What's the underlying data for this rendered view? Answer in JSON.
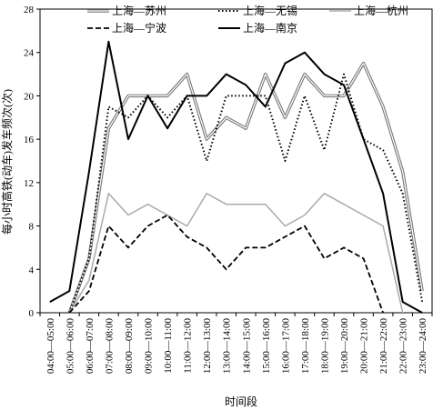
{
  "chart_data": {
    "type": "line",
    "xlabel": "时间段",
    "ylabel": "每小时高铁(动车)发车频次(次)",
    "ylim": [
      0,
      28
    ],
    "yticks": [
      "0",
      "4",
      "8",
      "12",
      "16",
      "20",
      "24",
      "28"
    ],
    "grid": false,
    "legend_position": "top",
    "categories": [
      "04:00—05:00",
      "05:00—06:00",
      "06:00—07:00",
      "07:00—08:00",
      "08:00—09:00",
      "09:00—10:00",
      "10:00—11:00",
      "11:00—12:00",
      "12:00—13:00",
      "13:00—14:00",
      "14:00—15:00",
      "15:00—16:00",
      "16:00—17:00",
      "17:00—18:00",
      "18:00—19:00",
      "19:00—20:00",
      "20:00—21:00",
      "21:00—22:00",
      "22:00—23:00",
      "23:00—24:00"
    ],
    "series": [
      {
        "name": "上海—苏州",
        "style": "double-gray",
        "color": "#777777",
        "values": [
          null,
          0,
          5,
          17,
          20,
          20,
          20,
          22,
          16,
          18,
          17,
          22,
          18,
          22,
          20,
          20,
          23,
          19,
          13,
          2
        ]
      },
      {
        "name": "上海—无锡",
        "style": "dotted",
        "color": "#000000",
        "values": [
          null,
          0,
          5,
          19,
          18,
          20,
          18,
          20,
          14,
          20,
          20,
          20,
          14,
          20,
          15,
          22,
          16,
          15,
          11,
          1
        ]
      },
      {
        "name": "上海—杭州",
        "style": "solid-gray",
        "color": "#aaaaaa",
        "values": [
          null,
          0,
          3,
          11,
          9,
          10,
          9,
          8,
          11,
          10,
          10,
          10,
          8,
          9,
          11,
          10,
          9,
          8,
          0,
          null
        ]
      },
      {
        "name": "上海—宁波",
        "style": "dashed",
        "color": "#000000",
        "values": [
          null,
          0,
          2,
          8,
          6,
          8,
          9,
          7,
          6,
          4,
          6,
          6,
          7,
          8,
          5,
          6,
          5,
          0,
          null,
          null
        ]
      },
      {
        "name": "上海—南京",
        "style": "solid-black",
        "color": "#000000",
        "values": [
          1,
          2,
          13,
          25,
          16,
          20,
          17,
          20,
          20,
          22,
          21,
          19,
          23,
          24,
          22,
          21,
          16,
          11,
          1,
          0
        ]
      }
    ]
  }
}
